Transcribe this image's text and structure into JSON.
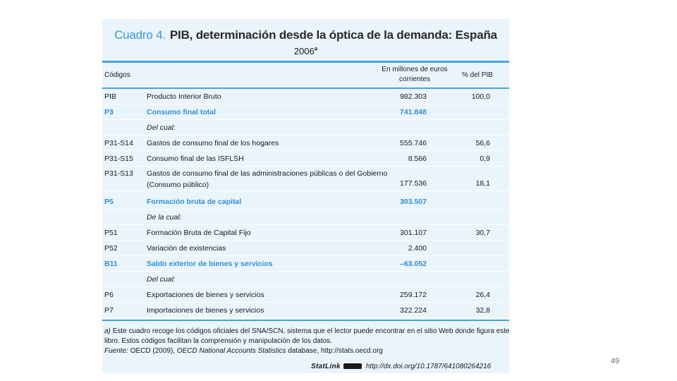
{
  "title": {
    "cuadro": "Cuadro 4.",
    "main": "PIB, determinación desde la óptica de la demanda: España",
    "year": "2006",
    "year_note": "a"
  },
  "header": {
    "codes": "Códigos",
    "value_line1": "En millones de euros",
    "value_line2": "corrientes",
    "pct": "% del PIB"
  },
  "rows": [
    {
      "code": "PIB",
      "label": "Producto Interior Bruto",
      "value": "982.303",
      "pct": "100,0"
    },
    {
      "code": "P3",
      "label": "Consumo final total",
      "value": "741.848",
      "pct": ""
    },
    {
      "code": "",
      "label": "Del cual:",
      "value": "",
      "pct": ""
    },
    {
      "code": "P31-S14",
      "label": "Gastos de consumo final de los hogares",
      "value": "555.746",
      "pct": "56,6"
    },
    {
      "code": "P31-S15",
      "label": "Consumo final de las ISFLSH",
      "value": "8.566",
      "pct": "0,9"
    },
    {
      "code": "P31-S13",
      "label_line1": "Gastos de consumo final de las administraciones públicas o del Gobierno",
      "label_line2": "(Consumo público)",
      "value": "177.536",
      "pct": "18,1"
    },
    {
      "code": "P5",
      "label": "Formación bruta de capital",
      "value": "303.507",
      "pct": ""
    },
    {
      "code": "",
      "label": "De la cual:",
      "value": "",
      "pct": ""
    },
    {
      "code": "P51",
      "label": "Formación Bruta de Capital Fijo",
      "value": "301.107",
      "pct": "30,7"
    },
    {
      "code": "P52",
      "label": "Variación de existencias",
      "value": "2.400",
      "pct": ""
    },
    {
      "code": "B11",
      "label": "Saldo exterior de bienes y servicios",
      "value": "–63.052",
      "pct": ""
    },
    {
      "code": "",
      "label": "Del cual:",
      "value": "",
      "pct": ""
    },
    {
      "code": "P6",
      "label": "Exportaciones de bienes y servicios",
      "value": "259.172",
      "pct": "26,4"
    },
    {
      "code": "P7",
      "label": "Importaciones de bienes y servicios",
      "value": "322.224",
      "pct": "32,8"
    }
  ],
  "notes": {
    "a_marker": "a)",
    "a_line1": "Este cuadro recoge los códigos oficiales del SNA/SCN, sistema que el lector puede encontrar en el sitio Web donde figura este",
    "a_line2": "libro. Estos códigos facilitan la comprensión y manipulación de los datos.",
    "source_label": "Fuente:",
    "source_text1": "OECD (2009),",
    "source_title": "OECD National Accounts Statistics",
    "source_text2": "database, http://stats.oecd.org"
  },
  "statlink": {
    "brand": "StatLink",
    "url": "http://dx.doi.org/10.1787/641080264216"
  },
  "page_number": "49",
  "colors": {
    "accent_blue": "#2f8fd6",
    "rule_blue": "#4aa3df",
    "panel_bg": "#eaf4fb"
  }
}
